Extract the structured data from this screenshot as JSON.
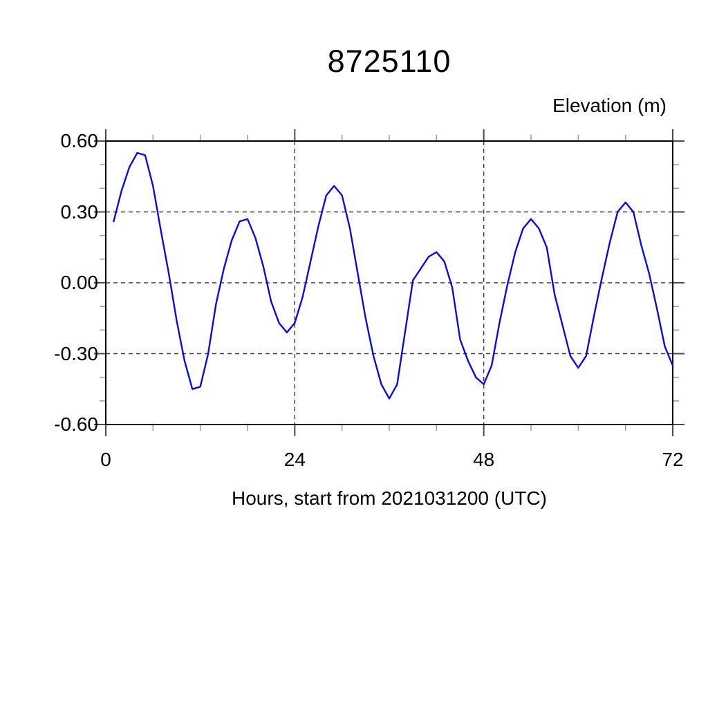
{
  "chart_data": {
    "type": "line",
    "title": "8725110",
    "ylabel": "Elevation (m)",
    "xlabel": "Hours, start from 2021031200 (UTC)",
    "xlim": [
      0,
      72
    ],
    "ylim": [
      -0.6,
      0.6
    ],
    "x_major_ticks": [
      0,
      24,
      48,
      72
    ],
    "x_tick_labels": [
      "0",
      "24",
      "48",
      "72"
    ],
    "x_minor_tick_step": 6,
    "y_major_ticks": [
      0.6,
      0.3,
      0.0,
      -0.3,
      -0.6
    ],
    "y_tick_labels": [
      "0.60",
      "0.30",
      "0.00",
      "-0.30",
      "-0.60"
    ],
    "y_minor_tick_step": 0.1,
    "grid": "dashed-lines-at-major-ticks",
    "legend": "none",
    "frame_color": "#000000",
    "grid_color": "#3d3d3d",
    "major_tick_color": "#4a4a4a",
    "minor_tick_color": "#999999",
    "series": [
      {
        "name": "tidal-elevation",
        "color": "#0a0ae0",
        "x": [
          1,
          2,
          3,
          4,
          5,
          6,
          7,
          8,
          9,
          10,
          11,
          12,
          13,
          14,
          15,
          16,
          17,
          18,
          19,
          20,
          21,
          22,
          23,
          24,
          25,
          26,
          27,
          28,
          29,
          30,
          31,
          32,
          33,
          34,
          35,
          36,
          37,
          38,
          39,
          40,
          41,
          42,
          43,
          44,
          45,
          46,
          47,
          48,
          49,
          50,
          51,
          52,
          53,
          54,
          55,
          56,
          57,
          58,
          59,
          60,
          61,
          62,
          63,
          64,
          65,
          66,
          67,
          68,
          69,
          70,
          71,
          72
        ],
        "y": [
          0.26,
          0.39,
          0.49,
          0.55,
          0.54,
          0.41,
          0.22,
          0.04,
          -0.16,
          -0.33,
          -0.45,
          -0.44,
          -0.3,
          -0.09,
          0.06,
          0.18,
          0.26,
          0.27,
          0.19,
          0.07,
          -0.08,
          -0.17,
          -0.21,
          -0.17,
          -0.06,
          0.09,
          0.24,
          0.37,
          0.41,
          0.37,
          0.23,
          0.04,
          -0.15,
          -0.31,
          -0.43,
          -0.49,
          -0.43,
          -0.21,
          0.01,
          0.06,
          0.11,
          0.13,
          0.09,
          -0.02,
          -0.24,
          -0.33,
          -0.4,
          -0.43,
          -0.35,
          -0.17,
          -0.01,
          0.13,
          0.23,
          0.27,
          0.23,
          0.15,
          -0.05,
          -0.18,
          -0.31,
          -0.36,
          -0.31,
          -0.14,
          0.02,
          0.17,
          0.3,
          0.34,
          0.3,
          0.16,
          0.04,
          -0.11,
          -0.27,
          -0.35
        ]
      }
    ]
  }
}
